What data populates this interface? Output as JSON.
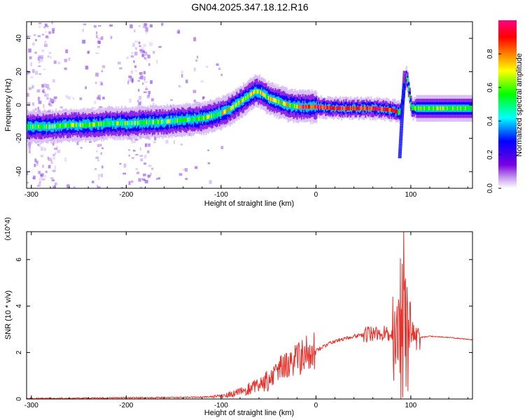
{
  "title": "GN04.2025.347.18.12.R16",
  "chart_data": [
    {
      "type": "heatmap",
      "xlabel": "Height of straight line (km)",
      "ylabel": "Frequency (Hz)",
      "xlim": [
        -305,
        165
      ],
      "ylim": [
        -50,
        50
      ],
      "xticks": [
        -300,
        -200,
        -100,
        0,
        100
      ],
      "yticks": [
        -40,
        -20,
        0,
        20,
        40
      ],
      "colorbar": {
        "label": "Normalized spectral amplitude",
        "range": [
          0.0,
          1.0
        ],
        "ticks": [
          "0.0",
          "0.2",
          "0.4",
          "0.6",
          "0.8"
        ],
        "colormap": [
          "#ffffff",
          "#c9a0f0",
          "#7a00e0",
          "#0000ff",
          "#00ffff",
          "#00ff00",
          "#ffff00",
          "#ff8000",
          "#ff0000",
          "#ff0080"
        ]
      },
      "ridge": {
        "x": [
          -300,
          -280,
          -260,
          -240,
          -220,
          -200,
          -180,
          -160,
          -140,
          -120,
          -100,
          -90,
          -80,
          -70,
          -65,
          -60,
          -55,
          -50,
          -40,
          -30,
          -20,
          -10,
          0,
          20,
          40,
          60,
          80,
          85,
          88,
          90,
          92,
          95,
          100,
          120,
          140,
          160
        ],
        "y": [
          -13,
          -13,
          -12,
          -12,
          -11,
          -11,
          -10.5,
          -10,
          -9,
          -8,
          -5,
          -2,
          2,
          6,
          8,
          8,
          6,
          4,
          2,
          0,
          -1,
          -1,
          -1,
          -2,
          -2,
          -2,
          -3,
          -4,
          -5,
          0,
          8,
          18,
          -2,
          -2,
          -2,
          -2
        ]
      }
    },
    {
      "type": "line",
      "xlabel": "Height of straight line (km)",
      "ylabel": "SNR (10 * v/v)",
      "y_multiplier": "(x10^4)",
      "xlim": [
        -305,
        165
      ],
      "ylim": [
        0,
        7.2
      ],
      "xticks": [
        -300,
        -200,
        -100,
        0,
        100
      ],
      "yticks": [
        0,
        2,
        4,
        6
      ],
      "color": "#e8312a",
      "series": [
        {
          "x": [
            -305,
            -250,
            -200,
            -150,
            -120,
            -100,
            -90,
            -80,
            -70,
            -60,
            -50,
            -40,
            -30,
            -20,
            -10,
            0,
            10,
            20,
            30,
            40,
            50,
            60,
            70,
            80,
            85,
            90,
            95,
            100,
            105,
            110,
            120,
            140,
            165
          ],
          "y": [
            0.02,
            0.03,
            0.05,
            0.06,
            0.08,
            0.12,
            0.2,
            0.3,
            0.45,
            0.6,
            0.8,
            1.2,
            1.5,
            1.7,
            1.9,
            2.1,
            2.3,
            2.5,
            2.6,
            2.7,
            2.75,
            2.8,
            2.8,
            2.85,
            2.9,
            3.1,
            2.5,
            2.8,
            2.7,
            2.65,
            2.7,
            2.65,
            2.55
          ]
        }
      ]
    }
  ]
}
